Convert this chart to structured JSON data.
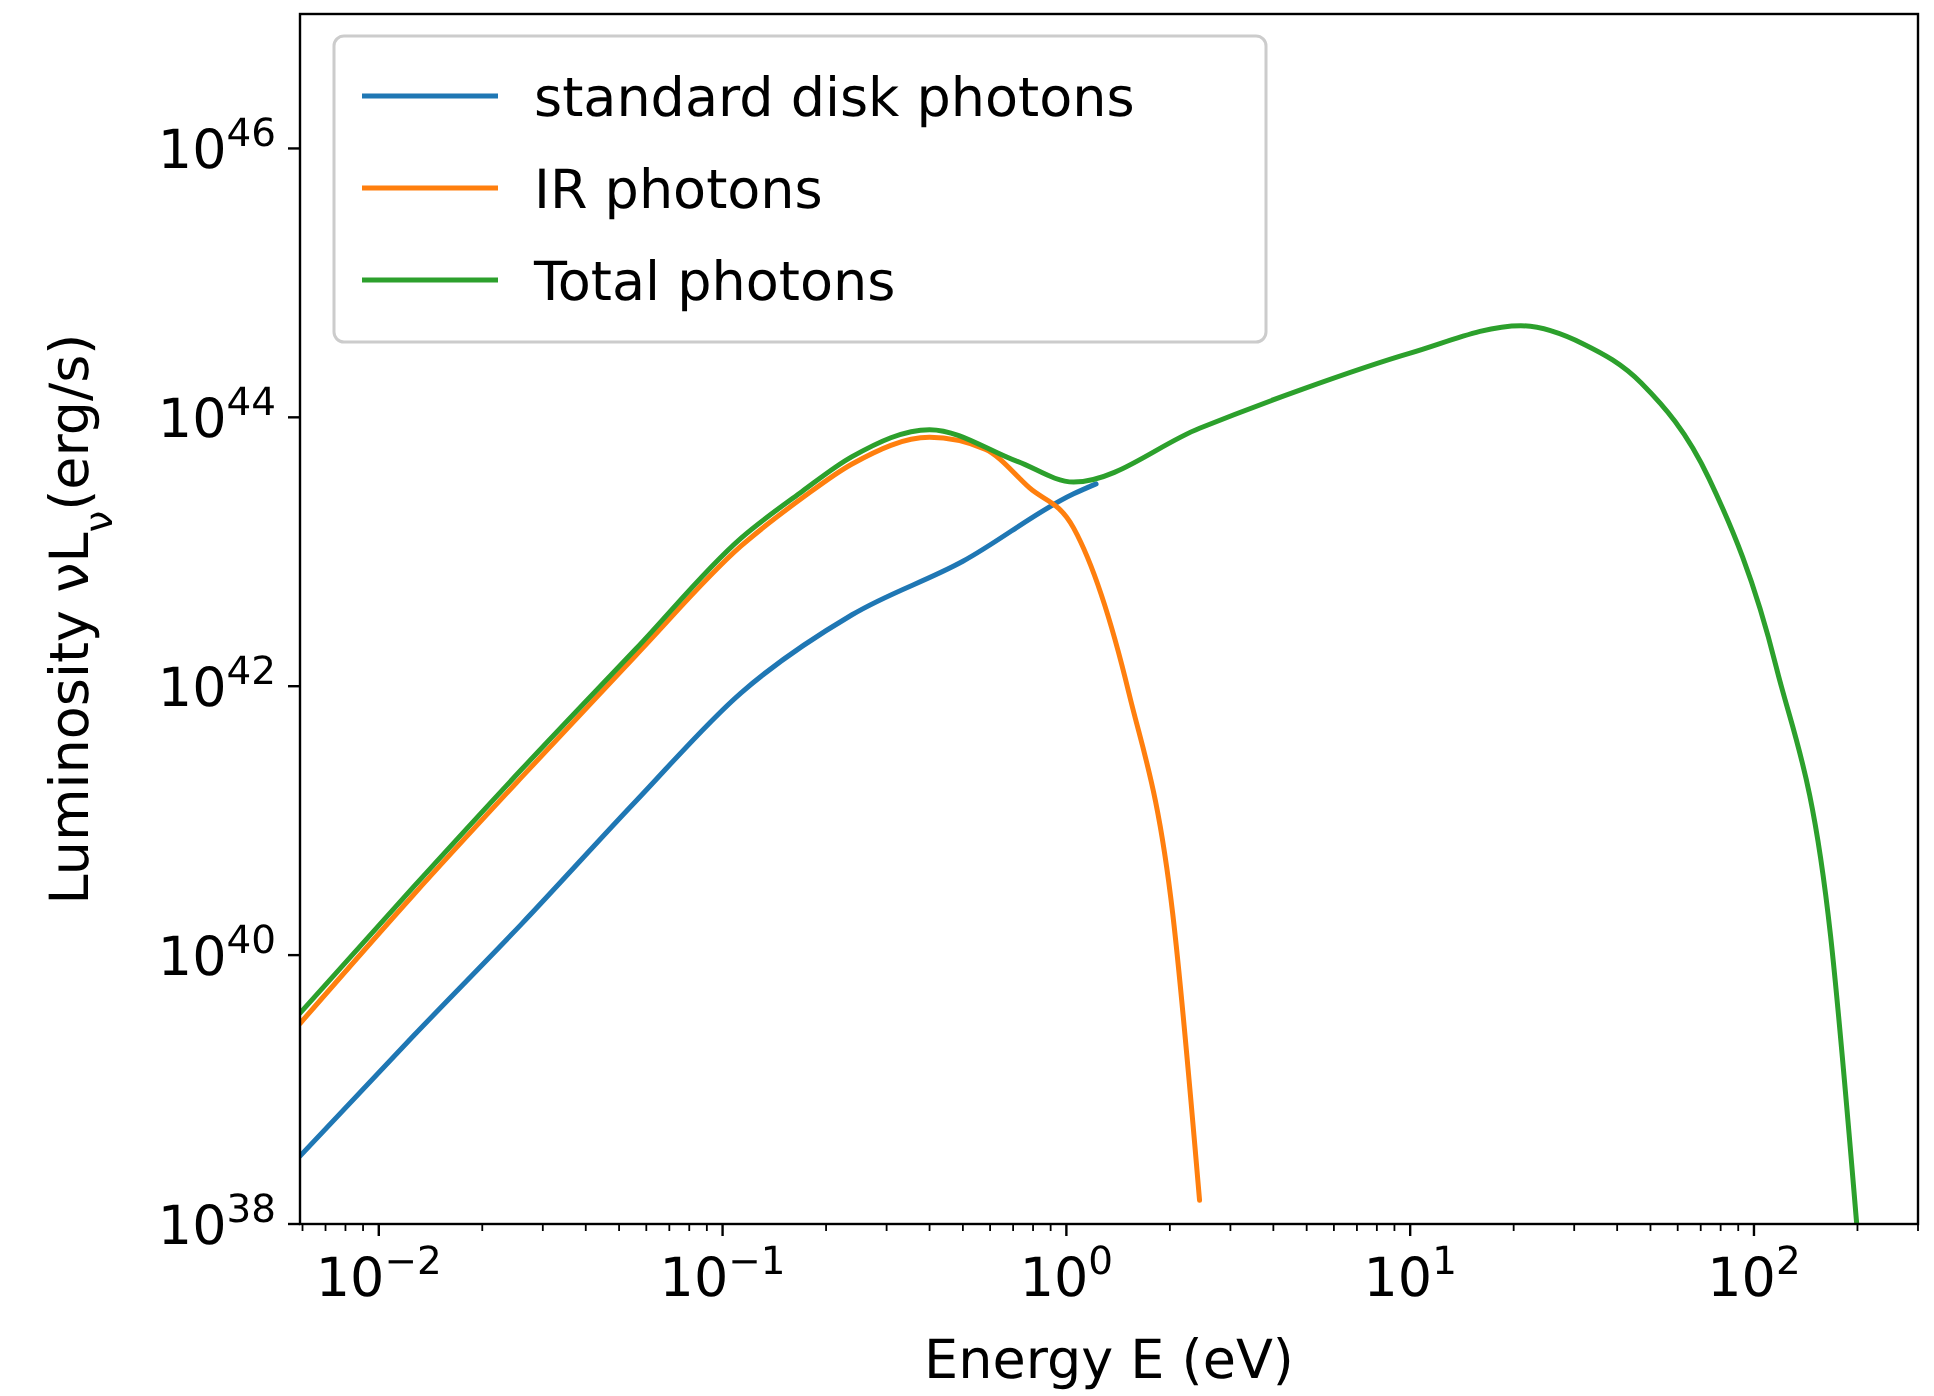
{
  "chart_data": {
    "type": "line",
    "xlabel": "Energy E (eV)",
    "ylabel": "Luminosity νL$_{ν}$(erg/s)",
    "log": "xy",
    "legend": "top left",
    "xlim": [
      0.0059,
      300
    ],
    "ylim": [
      1e+38,
      1e+47
    ],
    "xticks": [
      {
        "value": 0.006,
        "label": null
      },
      {
        "value": 0.007,
        "label": null
      },
      {
        "value": 0.008,
        "label": null
      },
      {
        "value": 0.009,
        "label": null
      },
      {
        "value": 0.01,
        "label": "10$^{−2}$"
      },
      {
        "value": 0.02,
        "label": null
      },
      {
        "value": 0.03,
        "label": null
      },
      {
        "value": 0.04,
        "label": null
      },
      {
        "value": 0.05,
        "label": null
      },
      {
        "value": 0.06,
        "label": null
      },
      {
        "value": 0.07,
        "label": null
      },
      {
        "value": 0.08,
        "label": null
      },
      {
        "value": 0.09,
        "label": null
      },
      {
        "value": 0.1,
        "label": "10$^{−1}$"
      },
      {
        "value": 0.2,
        "label": null
      },
      {
        "value": 0.3,
        "label": null
      },
      {
        "value": 0.4,
        "label": null
      },
      {
        "value": 0.5,
        "label": null
      },
      {
        "value": 0.6,
        "label": null
      },
      {
        "value": 0.7,
        "label": null
      },
      {
        "value": 0.8,
        "label": null
      },
      {
        "value": 0.9,
        "label": null
      },
      {
        "value": 1,
        "label": "10$^{0}$"
      },
      {
        "value": 2,
        "label": null
      },
      {
        "value": 3,
        "label": null
      },
      {
        "value": 4,
        "label": null
      },
      {
        "value": 5,
        "label": null
      },
      {
        "value": 6,
        "label": null
      },
      {
        "value": 7,
        "label": null
      },
      {
        "value": 8,
        "label": null
      },
      {
        "value": 9,
        "label": null
      },
      {
        "value": 10,
        "label": "10$^{1}$"
      },
      {
        "value": 20,
        "label": null
      },
      {
        "value": 30,
        "label": null
      },
      {
        "value": 40,
        "label": null
      },
      {
        "value": 50,
        "label": null
      },
      {
        "value": 60,
        "label": null
      },
      {
        "value": 70,
        "label": null
      },
      {
        "value": 80,
        "label": null
      },
      {
        "value": 90,
        "label": null
      },
      {
        "value": 100,
        "label": "10$^{2}$"
      },
      {
        "value": 200,
        "label": null
      },
      {
        "value": 300,
        "label": null
      }
    ],
    "yticks": [
      {
        "value": 1e+38,
        "label": "10$^{38}$"
      },
      {
        "value": 1e+40,
        "label": "10$^{40}$"
      },
      {
        "value": 1e+42,
        "label": "10$^{42}$"
      },
      {
        "value": 1e+44,
        "label": "10$^{44}$"
      },
      {
        "value": 1e+46,
        "label": "10$^{46}$"
      }
    ],
    "series": [
      {
        "name": "standard disk photons",
        "color": "#1f77b4",
        "x": [
          0.0059,
          0.0126,
          0.026,
          0.056,
          0.113,
          0.238,
          0.5,
          1.05,
          1.22
        ],
        "values": [
          3.2e+38,
          2.5e+39,
          1.7e+40,
          1.4e+41,
          8.9e+41,
          3.4e+42,
          8.5e+42,
          2.7e+43,
          3.2e+43
        ]
      },
      {
        "name": "IR photons",
        "color": "#ff7f0e",
        "x": [
          0.0059,
          0.0126,
          0.026,
          0.056,
          0.113,
          0.17,
          0.238,
          0.4,
          0.58,
          0.78,
          1.05,
          1.52,
          2.04,
          2.44
        ],
        "values": [
          3.1e+39,
          2.8e+40,
          2.1e+41,
          1.7e+42,
          1.1e+43,
          2.5e+43,
          4.5e+43,
          7.1e+43,
          5.8e+43,
          3e+43,
          1.5e+43,
          8.9e+41,
          2e+40,
          1.5e+38
        ]
      },
      {
        "name": "Total photons",
        "color": "#2ca02c",
        "x": [
          0.0059,
          0.0126,
          0.026,
          0.056,
          0.113,
          0.17,
          0.238,
          0.4,
          0.72,
          1.05,
          2.44,
          4.8,
          10,
          21,
          32,
          47,
          74,
          116,
          167,
          199
        ],
        "values": [
          3.7e+39,
          3.2e+40,
          2.4e+41,
          1.9e+42,
          1.26e+43,
          2.8e+43,
          5.1e+43,
          8.1e+43,
          4.7e+43,
          3.3e+43,
          8.3e+43,
          1.6e+44,
          3e+44,
          4.8e+44,
          3.5e+44,
          1.8e+44,
          3.5e+43,
          1.4e+42,
          1.4e+40,
          1e+38
        ]
      }
    ]
  }
}
